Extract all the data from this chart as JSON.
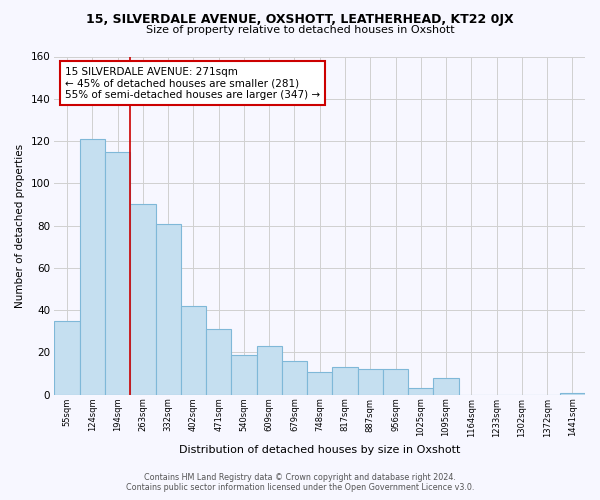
{
  "title": "15, SILVERDALE AVENUE, OXSHOTT, LEATHERHEAD, KT22 0JX",
  "subtitle": "Size of property relative to detached houses in Oxshott",
  "xlabel": "Distribution of detached houses by size in Oxshott",
  "ylabel": "Number of detached properties",
  "bin_labels": [
    "55sqm",
    "124sqm",
    "194sqm",
    "263sqm",
    "332sqm",
    "402sqm",
    "471sqm",
    "540sqm",
    "609sqm",
    "679sqm",
    "748sqm",
    "817sqm",
    "887sqm",
    "956sqm",
    "1025sqm",
    "1095sqm",
    "1164sqm",
    "1233sqm",
    "1302sqm",
    "1372sqm",
    "1441sqm"
  ],
  "bar_heights": [
    35,
    121,
    115,
    90,
    81,
    42,
    31,
    19,
    23,
    16,
    11,
    13,
    12,
    12,
    3,
    8,
    0,
    0,
    0,
    0,
    1
  ],
  "bar_color": "#c5dff0",
  "bar_edgecolor": "#7fb8d8",
  "ylim": [
    0,
    160
  ],
  "yticks": [
    0,
    20,
    40,
    60,
    80,
    100,
    120,
    140,
    160
  ],
  "vline_x": 3.0,
  "annotation_text_line1": "15 SILVERDALE AVENUE: 271sqm",
  "annotation_text_line2": "← 45% of detached houses are smaller (281)",
  "annotation_text_line3": "55% of semi-detached houses are larger (347) →",
  "annotation_box_facecolor": "#ffffff",
  "annotation_border_color": "#cc0000",
  "vline_color": "#cc0000",
  "grid_color": "#d0d0d0",
  "footer_line1": "Contains HM Land Registry data © Crown copyright and database right 2024.",
  "footer_line2": "Contains public sector information licensed under the Open Government Licence v3.0.",
  "bg_color": "#f7f7ff"
}
